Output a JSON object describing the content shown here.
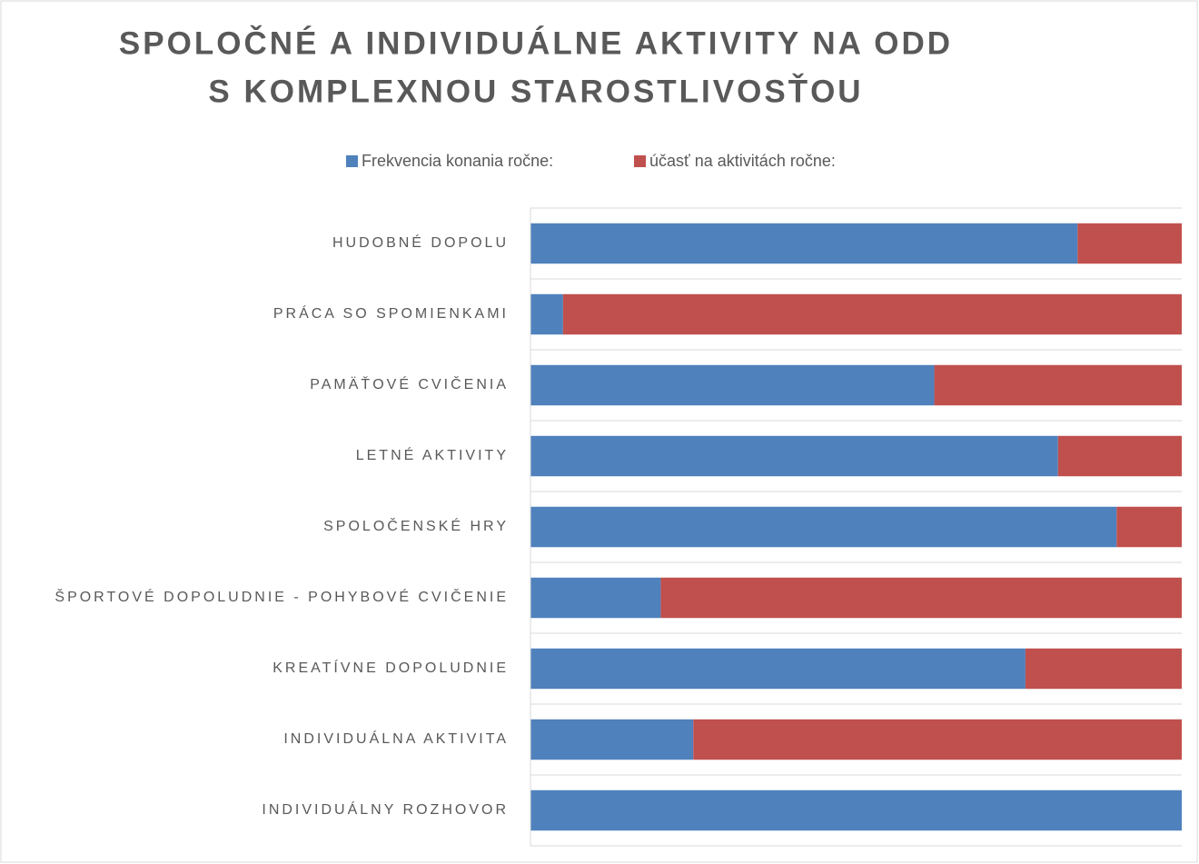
{
  "chart_data": {
    "type": "bar",
    "orientation": "horizontal",
    "stacked": true,
    "title": [
      "SPOLOČNÉ A INDIVIDUÁLNE AKTIVITY NA ODD",
      "S KOMPLEXNOU STAROSTLIVOSŤOU"
    ],
    "categories": [
      "HUDOBNÉ DOPOLU",
      "PRÁCA SO SPOMIENKAMI",
      "PAMÄŤOVÉ CVIČENIA",
      "LETNÉ AKTIVITY",
      "SPOLOČENSKÉ HRY",
      "ŠPORTOVÉ DOPOLUDNIE - POHYBOVÉ CVIČENIE",
      "KREATÍVNE DOPOLUDNIE",
      "INDIVIDUÁLNA AKTIVITA",
      "INDIVIDUÁLNY ROZHOVOR"
    ],
    "series": [
      {
        "name": "Frekvencia konania ročne:",
        "color": "#4f81bd",
        "values": [
          84,
          5,
          62,
          81,
          90,
          20,
          76,
          25,
          100
        ]
      },
      {
        "name": "účasť na aktivitách ročne:",
        "color": "#c0504d",
        "values": [
          16,
          95,
          38,
          19,
          10,
          80,
          24,
          75,
          0
        ]
      }
    ],
    "xlim": [
      0,
      100
    ],
    "legend": "top"
  }
}
